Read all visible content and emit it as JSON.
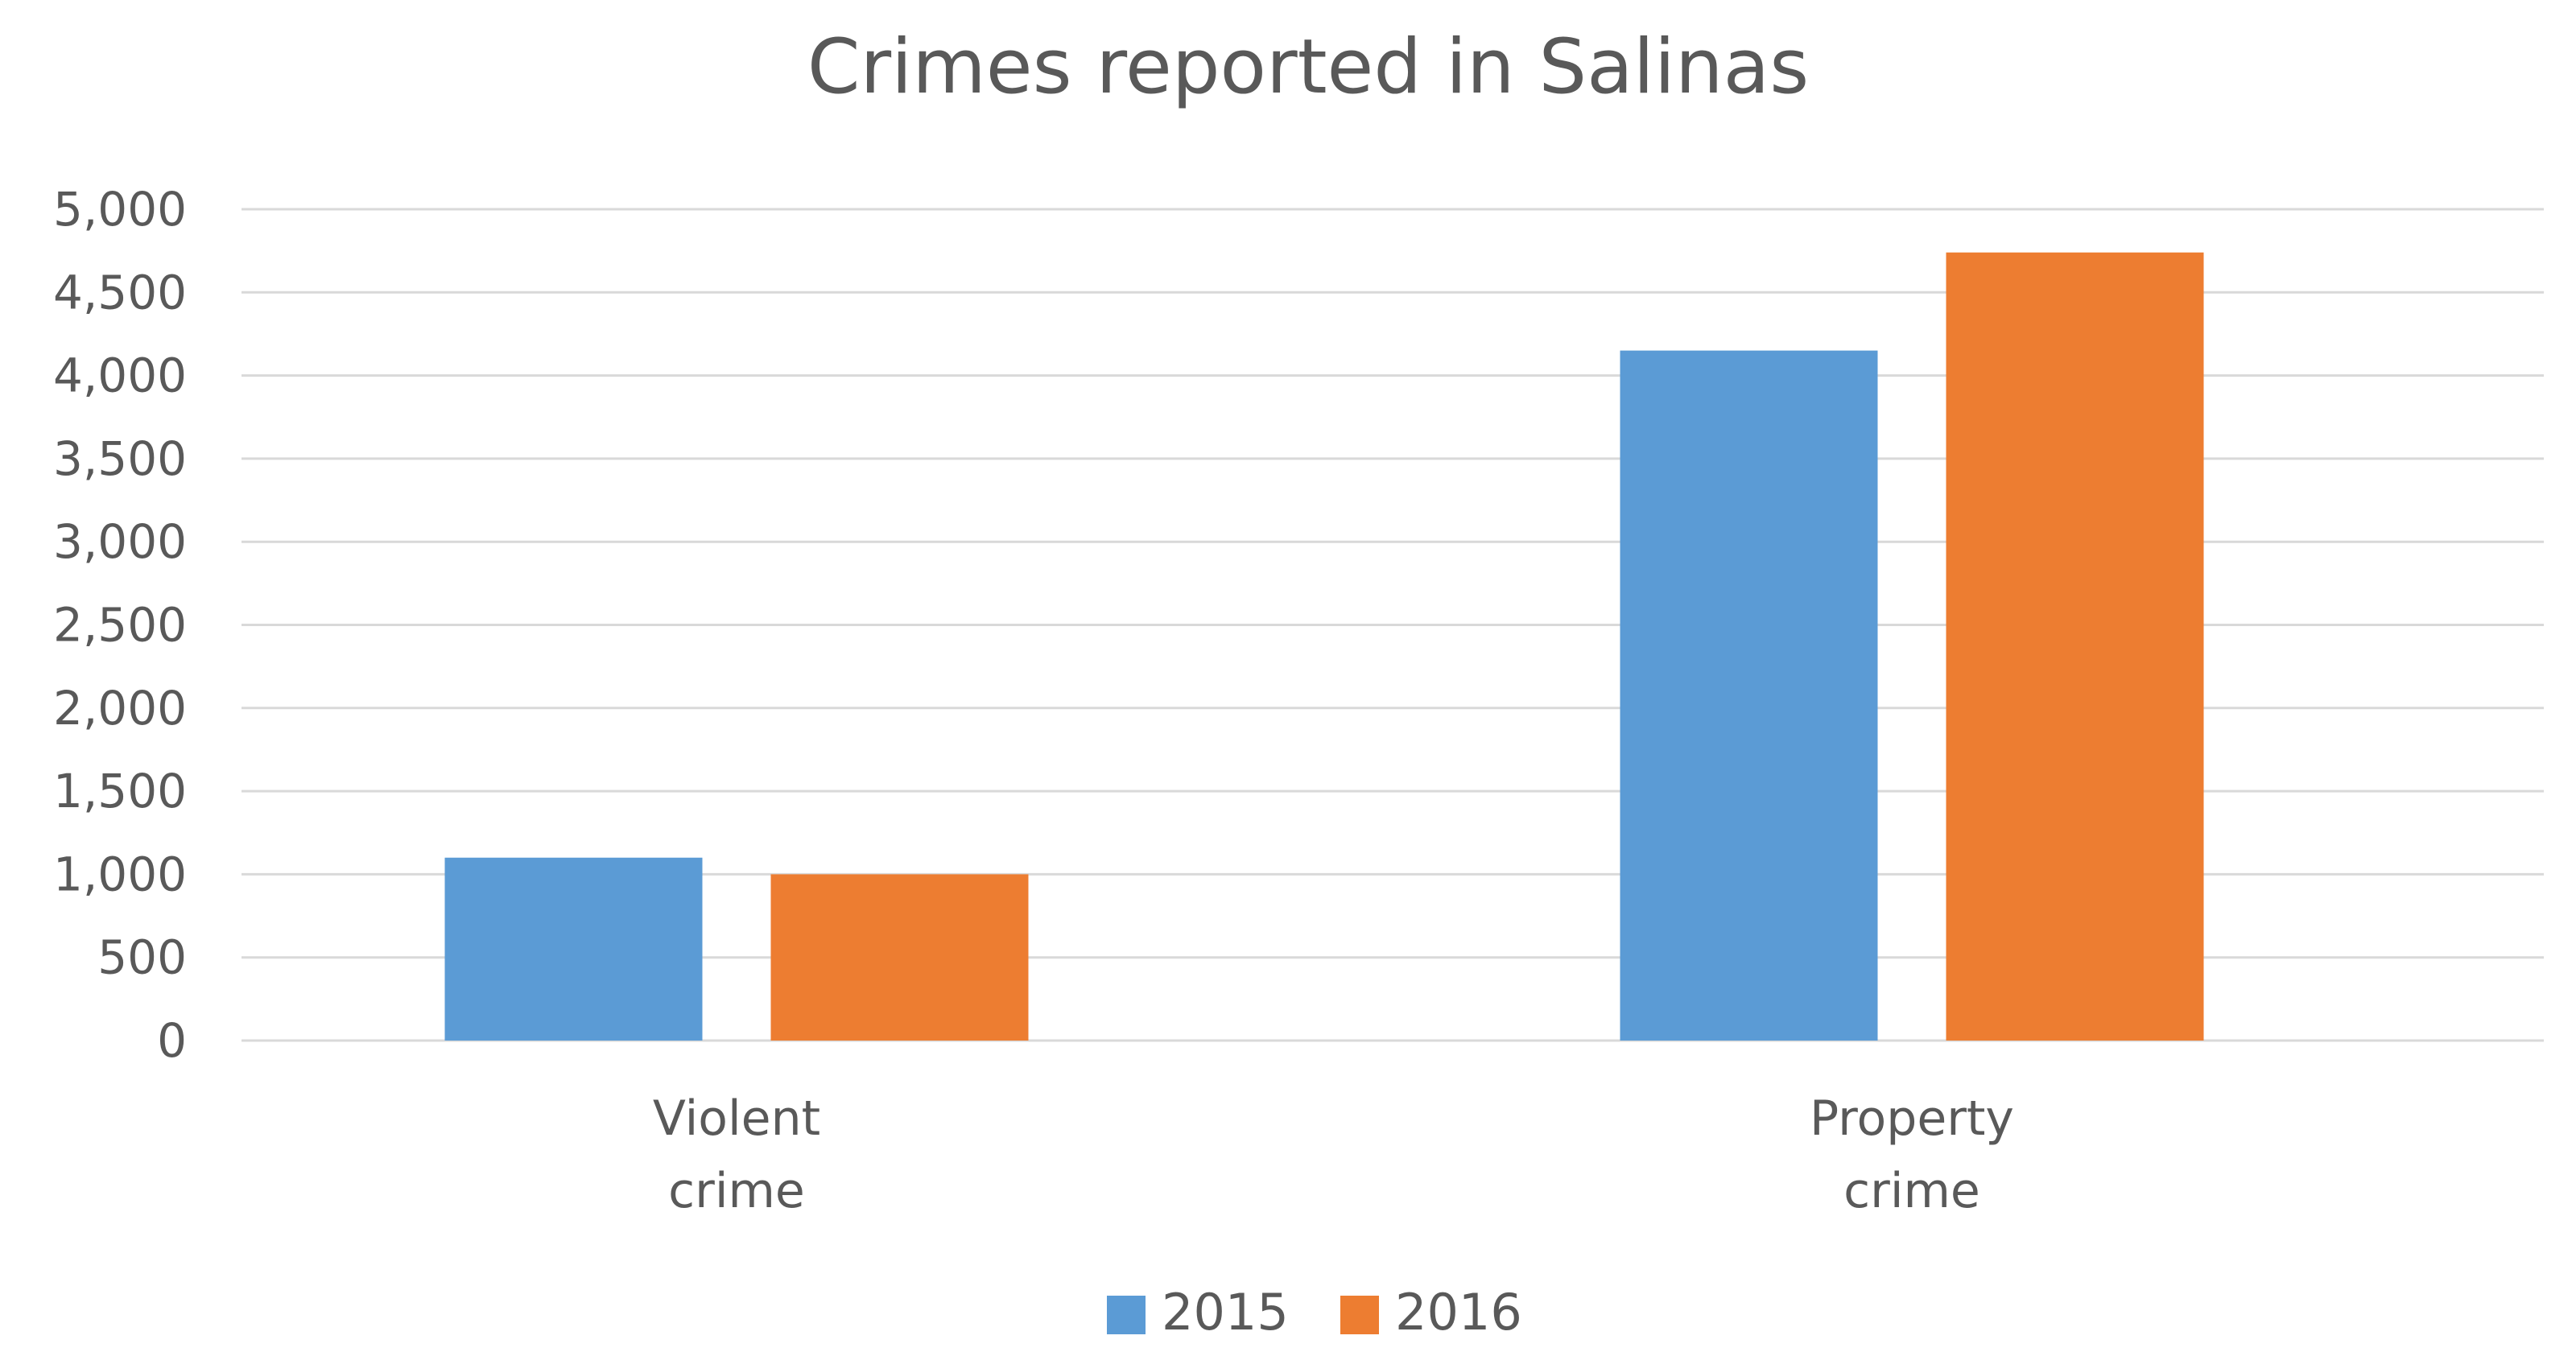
{
  "chart_data": {
    "type": "bar",
    "title": "Crimes reported in Salinas",
    "xlabel": "",
    "ylabel": "",
    "categories": [
      [
        "Violent",
        "crime"
      ],
      [
        "Property",
        "crime"
      ]
    ],
    "series": [
      {
        "name": "2015",
        "color": "#5b9bd5",
        "values": [
          1100,
          4150
        ]
      },
      {
        "name": "2016",
        "color": "#ed7d31",
        "values": [
          1000,
          4740
        ]
      }
    ],
    "ylim": [
      0,
      5000
    ],
    "yticks": [
      "0",
      "500",
      "1,000",
      "1,500",
      "2,000",
      "2,500",
      "3,000",
      "3,500",
      "4,000",
      "4,500",
      "5,000"
    ],
    "ytick_step": 500,
    "grid": true,
    "legend_position": "bottom-center"
  }
}
